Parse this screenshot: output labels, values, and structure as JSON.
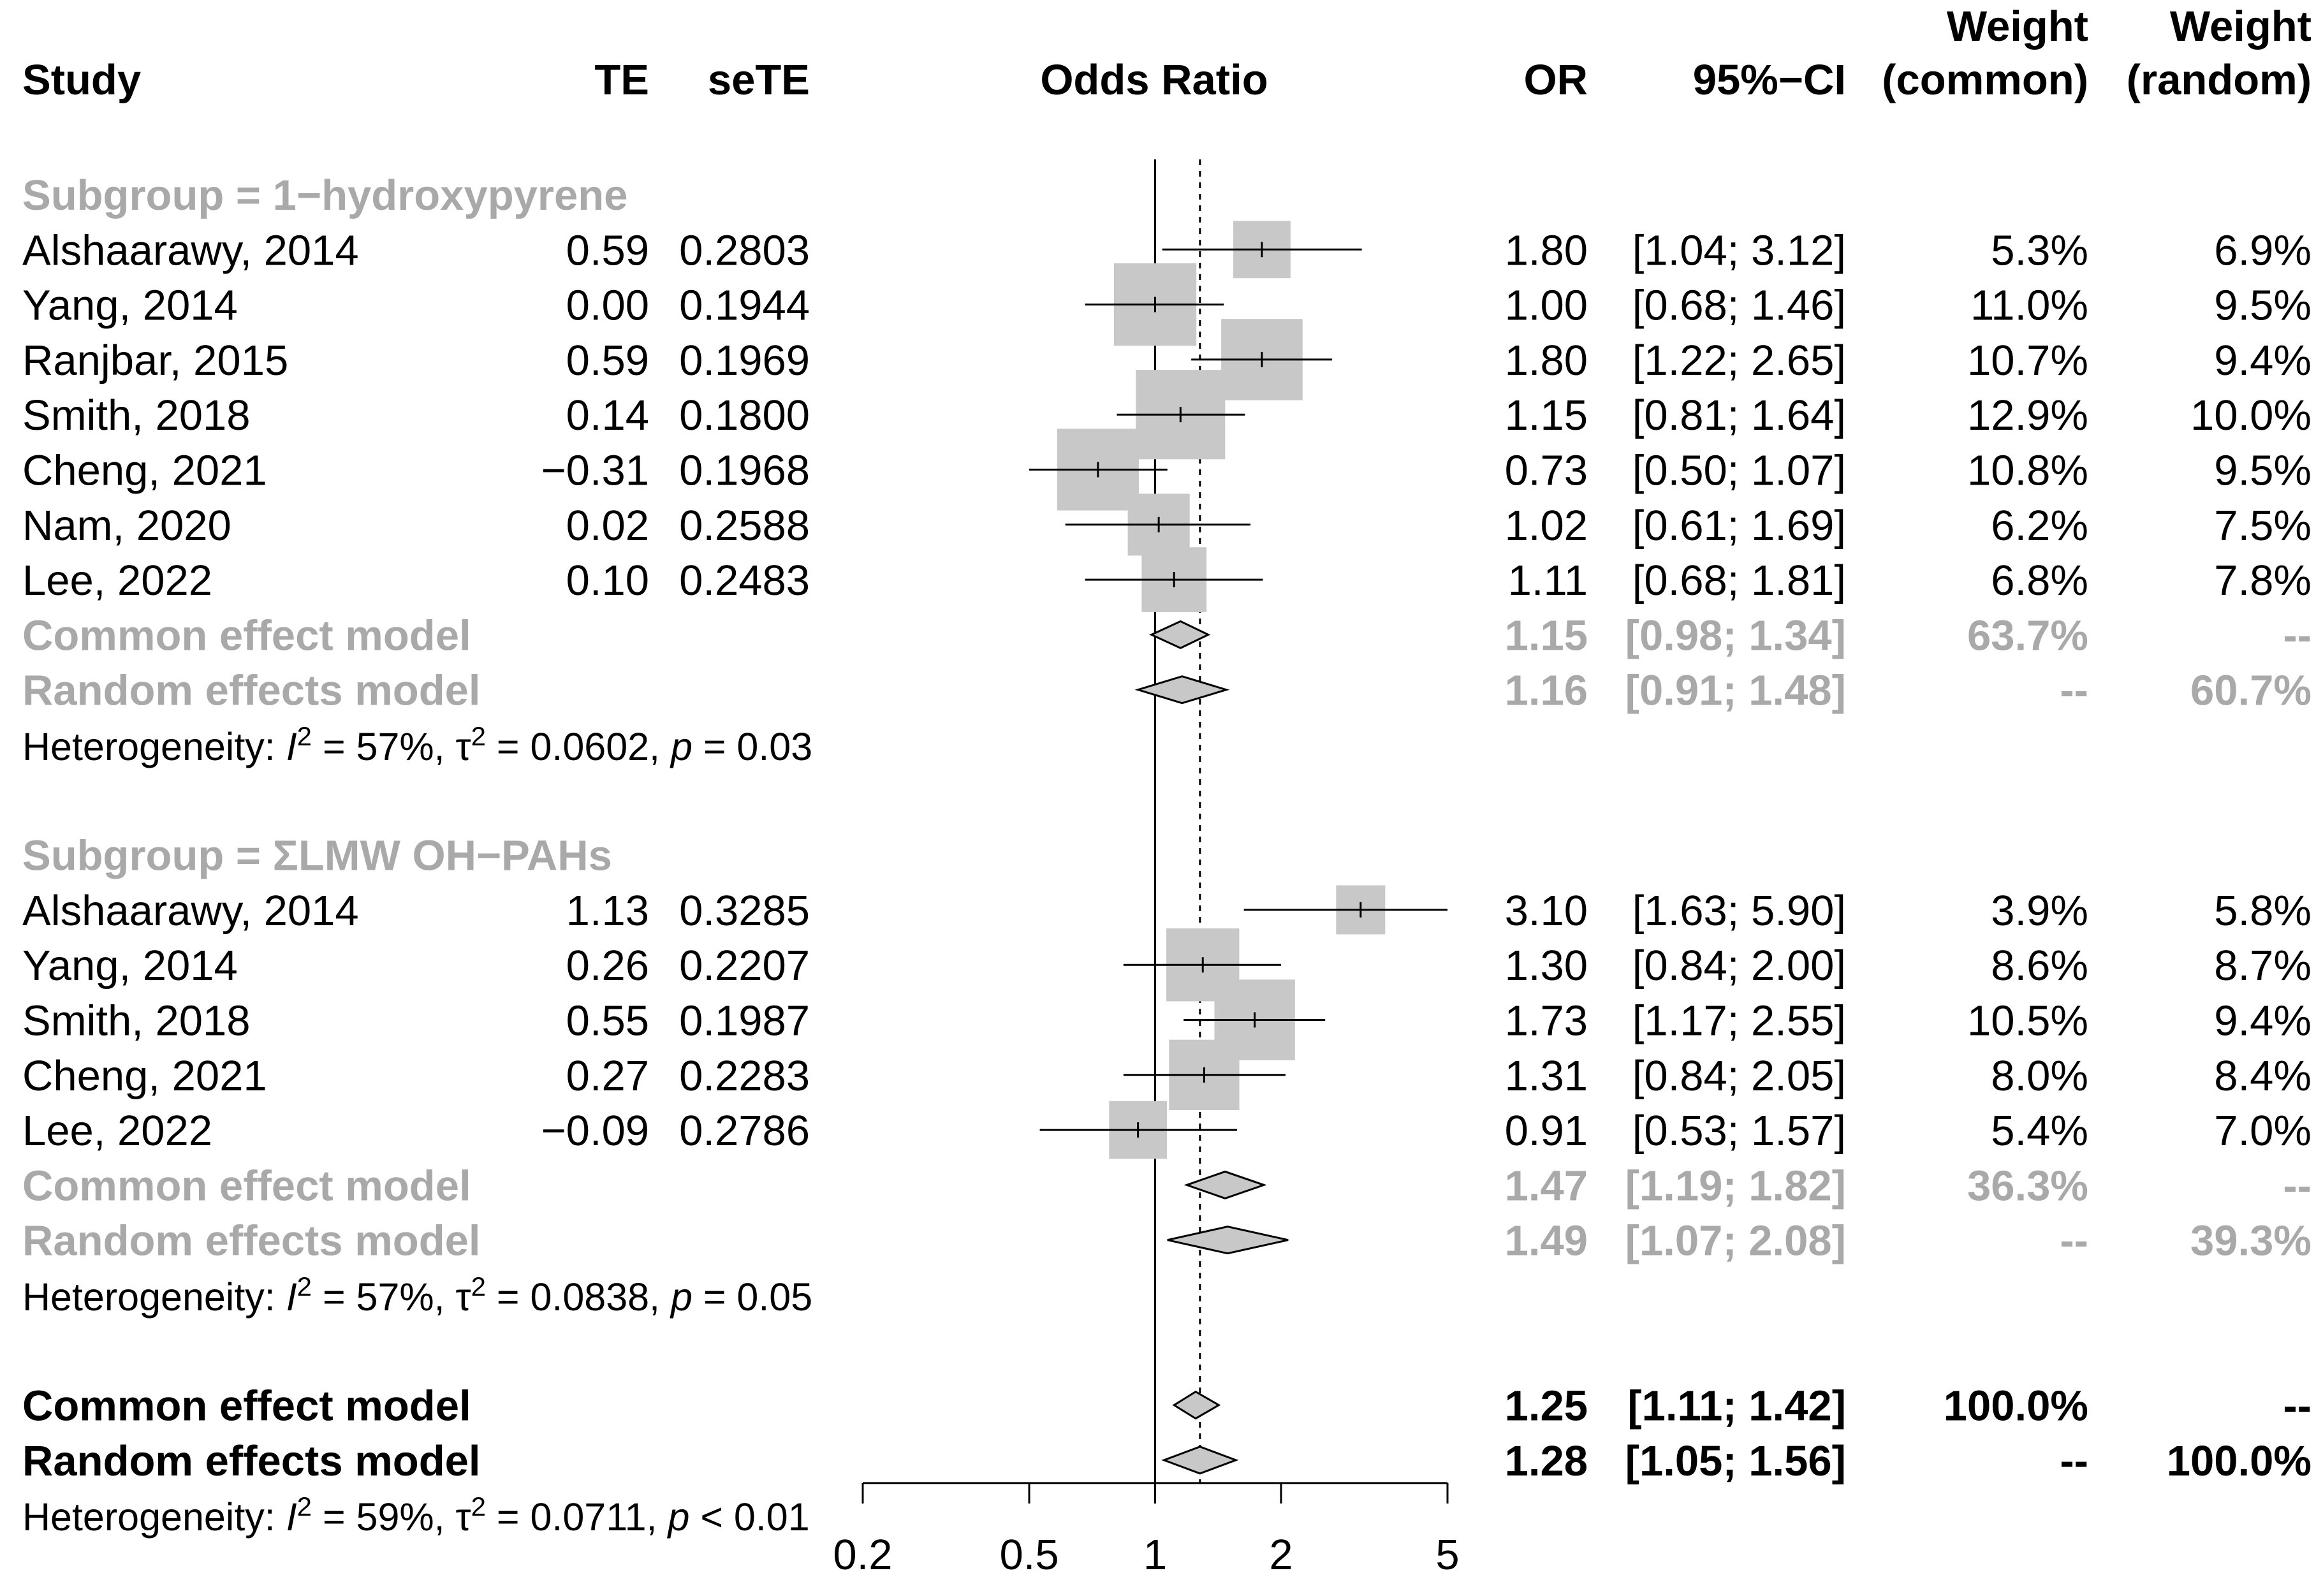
{
  "colors": {
    "text": "#000000",
    "subgroup_text": "#a9a9a9",
    "box_fill": "#c8c8c8",
    "diamond_fill": "#c8c8c8",
    "line": "#000000"
  },
  "headers": {
    "study": "Study",
    "te": "TE",
    "sete": "seTE",
    "plot": "Odds Ratio",
    "or": "OR",
    "ci": "95%−CI",
    "w_common_1": "Weight",
    "w_common_2": "(common)",
    "w_random_1": "Weight",
    "w_random_2": "(random)"
  },
  "chart_data": {
    "type": "forest",
    "title": "",
    "xlabel": "",
    "measure": "Odds Ratio",
    "x_scale": "log",
    "xlim": [
      0.2,
      5
    ],
    "xticks": [
      0.2,
      0.5,
      1,
      2,
      5
    ],
    "xtick_labels": [
      "0.2",
      "0.5",
      "1",
      "2",
      "5"
    ],
    "null_value": 1,
    "pooled_random_reference": 1.28,
    "rows": [
      {
        "kind": "subgroup",
        "label": "Subgroup = 1−hydroxypyrene"
      },
      {
        "kind": "study",
        "study": "Alshaarawy, 2014",
        "te": "0.59",
        "sete": "0.2803",
        "or": 1.8,
        "lo": 1.04,
        "hi": 3.12,
        "or_text": "1.80",
        "ci_text": "[1.04; 3.12]",
        "w_common": 5.3,
        "w_common_text": "5.3%",
        "w_random": 6.9,
        "w_random_text": "6.9%"
      },
      {
        "kind": "study",
        "study": "Yang, 2014",
        "te": "0.00",
        "sete": "0.1944",
        "or": 1.0,
        "lo": 0.68,
        "hi": 1.46,
        "or_text": "1.00",
        "ci_text": "[0.68; 1.46]",
        "w_common": 11.0,
        "w_common_text": "11.0%",
        "w_random": 9.5,
        "w_random_text": "9.5%"
      },
      {
        "kind": "study",
        "study": "Ranjbar, 2015",
        "te": "0.59",
        "sete": "0.1969",
        "or": 1.8,
        "lo": 1.22,
        "hi": 2.65,
        "or_text": "1.80",
        "ci_text": "[1.22; 2.65]",
        "w_common": 10.7,
        "w_common_text": "10.7%",
        "w_random": 9.4,
        "w_random_text": "9.4%"
      },
      {
        "kind": "study",
        "study": "Smith, 2018",
        "te": "0.14",
        "sete": "0.1800",
        "or": 1.15,
        "lo": 0.81,
        "hi": 1.64,
        "or_text": "1.15",
        "ci_text": "[0.81; 1.64]",
        "w_common": 12.9,
        "w_common_text": "12.9%",
        "w_random": 10.0,
        "w_random_text": "10.0%"
      },
      {
        "kind": "study",
        "study": "Cheng, 2021",
        "te": "−0.31",
        "sete": "0.1968",
        "or": 0.73,
        "lo": 0.5,
        "hi": 1.07,
        "or_text": "0.73",
        "ci_text": "[0.50; 1.07]",
        "w_common": 10.8,
        "w_common_text": "10.8%",
        "w_random": 9.5,
        "w_random_text": "9.5%"
      },
      {
        "kind": "study",
        "study": "Nam, 2020",
        "te": "0.02",
        "sete": "0.2588",
        "or": 1.02,
        "lo": 0.61,
        "hi": 1.69,
        "or_text": "1.02",
        "ci_text": "[0.61; 1.69]",
        "w_common": 6.2,
        "w_common_text": "6.2%",
        "w_random": 7.5,
        "w_random_text": "7.5%"
      },
      {
        "kind": "study",
        "study": "Lee, 2022",
        "te": "0.10",
        "sete": "0.2483",
        "or": 1.11,
        "lo": 0.68,
        "hi": 1.81,
        "or_text": "1.11",
        "ci_text": "[0.68; 1.81]",
        "w_common": 6.8,
        "w_common_text": "6.8%",
        "w_random": 7.8,
        "w_random_text": "7.8%"
      },
      {
        "kind": "pooled",
        "style": "grey",
        "study": "Common effect model",
        "or": 1.15,
        "lo": 0.98,
        "hi": 1.34,
        "or_text": "1.15",
        "ci_text": "[0.98; 1.34]",
        "w_common_text": "63.7%",
        "w_random_text": "--"
      },
      {
        "kind": "pooled",
        "style": "grey",
        "study": "Random effects model",
        "or": 1.16,
        "lo": 0.91,
        "hi": 1.48,
        "or_text": "1.16",
        "ci_text": "[0.91; 1.48]",
        "w_common_text": "--",
        "w_random_text": "60.7%"
      },
      {
        "kind": "het",
        "style": "grey",
        "i2": "57%",
        "tau2": "0.0602",
        "p_op": "=",
        "p": "0.03"
      },
      {
        "kind": "gap"
      },
      {
        "kind": "subgroup",
        "label": "Subgroup = ΣLMW OH−PAHs"
      },
      {
        "kind": "study",
        "study": "Alshaarawy, 2014",
        "te": "1.13",
        "sete": "0.3285",
        "or": 3.1,
        "lo": 1.63,
        "hi": 5.9,
        "or_text": "3.10",
        "ci_text": "[1.63; 5.90]",
        "w_common": 3.9,
        "w_common_text": "3.9%",
        "w_random": 5.8,
        "w_random_text": "5.8%"
      },
      {
        "kind": "study",
        "study": "Yang, 2014",
        "te": "0.26",
        "sete": "0.2207",
        "or": 1.3,
        "lo": 0.84,
        "hi": 2.0,
        "or_text": "1.30",
        "ci_text": "[0.84; 2.00]",
        "w_common": 8.6,
        "w_common_text": "8.6%",
        "w_random": 8.7,
        "w_random_text": "8.7%"
      },
      {
        "kind": "study",
        "study": "Smith, 2018",
        "te": "0.55",
        "sete": "0.1987",
        "or": 1.73,
        "lo": 1.17,
        "hi": 2.55,
        "or_text": "1.73",
        "ci_text": "[1.17; 2.55]",
        "w_common": 10.5,
        "w_common_text": "10.5%",
        "w_random": 9.4,
        "w_random_text": "9.4%"
      },
      {
        "kind": "study",
        "study": "Cheng, 2021",
        "te": "0.27",
        "sete": "0.2283",
        "or": 1.31,
        "lo": 0.84,
        "hi": 2.05,
        "or_text": "1.31",
        "ci_text": "[0.84; 2.05]",
        "w_common": 8.0,
        "w_common_text": "8.0%",
        "w_random": 8.4,
        "w_random_text": "8.4%"
      },
      {
        "kind": "study",
        "study": "Lee, 2022",
        "te": "−0.09",
        "sete": "0.2786",
        "or": 0.91,
        "lo": 0.53,
        "hi": 1.57,
        "or_text": "0.91",
        "ci_text": "[0.53; 1.57]",
        "w_common": 5.4,
        "w_common_text": "5.4%",
        "w_random": 7.0,
        "w_random_text": "7.0%"
      },
      {
        "kind": "pooled",
        "style": "grey",
        "study": "Common effect model",
        "or": 1.47,
        "lo": 1.19,
        "hi": 1.82,
        "or_text": "1.47",
        "ci_text": "[1.19; 1.82]",
        "w_common_text": "36.3%",
        "w_random_text": "--"
      },
      {
        "kind": "pooled",
        "style": "grey",
        "study": "Random effects model",
        "or": 1.49,
        "lo": 1.07,
        "hi": 2.08,
        "or_text": "1.49",
        "ci_text": "[1.07; 2.08]",
        "w_common_text": "--",
        "w_random_text": "39.3%"
      },
      {
        "kind": "het",
        "style": "grey",
        "i2": "57%",
        "tau2": "0.0838",
        "p_op": "=",
        "p": "0.05"
      },
      {
        "kind": "gap"
      },
      {
        "kind": "pooled",
        "style": "bold",
        "study": "Common effect model",
        "or": 1.25,
        "lo": 1.11,
        "hi": 1.42,
        "or_text": "1.25",
        "ci_text": "[1.11; 1.42]",
        "w_common_text": "100.0%",
        "w_random_text": "--"
      },
      {
        "kind": "pooled",
        "style": "bold",
        "study": "Random effects model",
        "or": 1.28,
        "lo": 1.05,
        "hi": 1.56,
        "or_text": "1.28",
        "ci_text": "[1.05; 1.56]",
        "w_common_text": "--",
        "w_random_text": "100.0%"
      },
      {
        "kind": "het",
        "style": "black",
        "i2": "59%",
        "tau2": "0.0711",
        "p_op": "<",
        "p": "0.01"
      }
    ]
  }
}
